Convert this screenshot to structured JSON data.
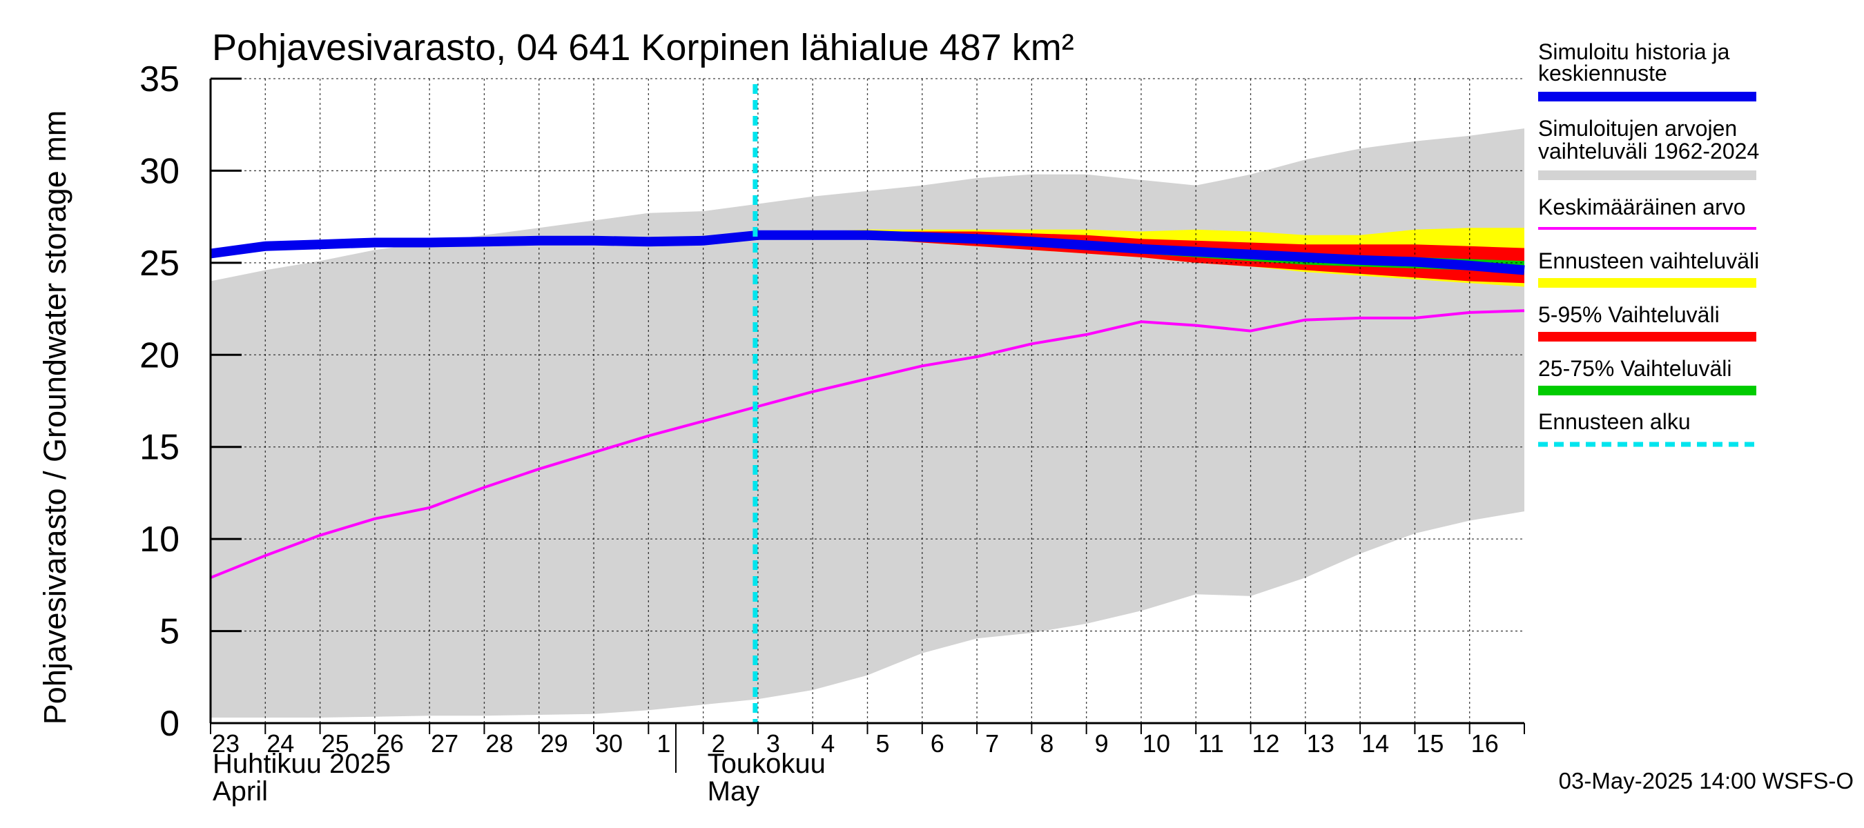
{
  "chart_data": {
    "type": "area",
    "title": "Pohjavesivarasto, 04 641 Korpinen lähialue 487 km²",
    "ylabel": "Pohjavesivarasto / Groundwater storage   mm",
    "ylim": [
      0,
      35
    ],
    "yticks": [
      "0",
      "5",
      "10",
      "15",
      "20",
      "25",
      "30",
      "35"
    ],
    "grid": true,
    "legend_position": "right",
    "x_start": "2025-04-23",
    "x_end": "2025-05-17",
    "forecast_start": "2025-05-03",
    "day_labels": [
      "23",
      "24",
      "25",
      "26",
      "27",
      "28",
      "29",
      "30",
      "1",
      "2",
      "3",
      "4",
      "5",
      "6",
      "7",
      "8",
      "9",
      "10",
      "11",
      "12",
      "13",
      "14",
      "15",
      "16"
    ],
    "months": [
      {
        "line1": "Huhtikuu  2025",
        "line2": "April",
        "start": "2025-04-23"
      },
      {
        "line1": "Toukokuu",
        "line2": "May",
        "start": "2025-05-02"
      }
    ],
    "series": [
      {
        "name": "Simuloitujen arvojen vaihteluväli 1962-2024",
        "kind": "band",
        "color": "#d3d3d3",
        "x": [
          "2025-04-23",
          "2025-04-24",
          "2025-04-25",
          "2025-04-26",
          "2025-04-27",
          "2025-04-28",
          "2025-04-29",
          "2025-04-30",
          "2025-05-01",
          "2025-05-02",
          "2025-05-03",
          "2025-05-04",
          "2025-05-05",
          "2025-05-06",
          "2025-05-07",
          "2025-05-08",
          "2025-05-09",
          "2025-05-10",
          "2025-05-11",
          "2025-05-12",
          "2025-05-13",
          "2025-05-14",
          "2025-05-15",
          "2025-05-16",
          "2025-05-17"
        ],
        "low": [
          0.3,
          0.3,
          0.3,
          0.35,
          0.4,
          0.4,
          0.45,
          0.5,
          0.7,
          1.0,
          1.3,
          1.8,
          2.6,
          3.8,
          4.6,
          4.9,
          5.4,
          6.1,
          7.0,
          6.9,
          7.9,
          9.2,
          10.3,
          11.0,
          11.5
        ],
        "high": [
          24.0,
          24.6,
          25.1,
          25.7,
          26.1,
          26.5,
          26.9,
          27.3,
          27.7,
          27.8,
          28.2,
          28.6,
          28.9,
          29.2,
          29.6,
          29.8,
          29.8,
          29.5,
          29.2,
          29.8,
          30.6,
          31.2,
          31.6,
          31.9,
          32.3
        ]
      },
      {
        "name": "Ennusteen vaihteluväli",
        "kind": "band",
        "color": "#ffff00",
        "x": [
          "2025-05-03",
          "2025-05-04",
          "2025-05-05",
          "2025-05-06",
          "2025-05-07",
          "2025-05-08",
          "2025-05-09",
          "2025-05-10",
          "2025-05-11",
          "2025-05-12",
          "2025-05-13",
          "2025-05-14",
          "2025-05-15",
          "2025-05-16",
          "2025-05-17"
        ],
        "low": [
          26.5,
          26.4,
          26.3,
          26.1,
          25.9,
          25.7,
          25.5,
          25.3,
          25.0,
          24.8,
          24.5,
          24.3,
          24.1,
          23.9,
          23.7
        ],
        "high": [
          26.5,
          26.7,
          26.8,
          26.8,
          26.8,
          26.8,
          26.8,
          26.7,
          26.8,
          26.7,
          26.5,
          26.5,
          26.8,
          26.9,
          26.9
        ]
      },
      {
        "name": "5-95% Vaihteluväli",
        "kind": "band",
        "color": "#ff0000",
        "x": [
          "2025-05-03",
          "2025-05-04",
          "2025-05-05",
          "2025-05-06",
          "2025-05-07",
          "2025-05-08",
          "2025-05-09",
          "2025-05-10",
          "2025-05-11",
          "2025-05-12",
          "2025-05-13",
          "2025-05-14",
          "2025-05-15",
          "2025-05-16",
          "2025-05-17"
        ],
        "low": [
          26.5,
          26.4,
          26.3,
          26.1,
          25.9,
          25.7,
          25.5,
          25.3,
          25.0,
          24.8,
          24.6,
          24.4,
          24.2,
          24.0,
          23.9
        ],
        "high": [
          26.5,
          26.6,
          26.7,
          26.7,
          26.7,
          26.6,
          26.5,
          26.3,
          26.2,
          26.1,
          26.0,
          26.0,
          26.0,
          25.9,
          25.8
        ]
      },
      {
        "name": "25-75% Vaihteluväli",
        "kind": "band",
        "color": "#00cc00",
        "x": [
          "2025-05-03",
          "2025-05-04",
          "2025-05-05",
          "2025-05-06",
          "2025-05-07",
          "2025-05-08",
          "2025-05-09",
          "2025-05-10",
          "2025-05-11",
          "2025-05-12",
          "2025-05-13",
          "2025-05-14",
          "2025-05-15",
          "2025-05-16",
          "2025-05-17"
        ],
        "low": [
          26.5,
          26.5,
          26.5,
          26.3,
          26.1,
          25.9,
          25.7,
          25.5,
          25.3,
          25.1,
          24.9,
          24.8,
          24.7,
          24.6,
          24.5
        ],
        "high": [
          26.5,
          26.6,
          26.6,
          26.5,
          26.4,
          26.3,
          26.1,
          25.9,
          25.7,
          25.6,
          25.5,
          25.4,
          25.3,
          25.2,
          25.1
        ]
      },
      {
        "name": "Keskimääräinen arvo",
        "kind": "line",
        "color": "#ff00ff",
        "x": [
          "2025-04-23",
          "2025-04-24",
          "2025-04-25",
          "2025-04-26",
          "2025-04-27",
          "2025-04-28",
          "2025-04-29",
          "2025-04-30",
          "2025-05-01",
          "2025-05-02",
          "2025-05-03",
          "2025-05-04",
          "2025-05-05",
          "2025-05-06",
          "2025-05-07",
          "2025-05-08",
          "2025-05-09",
          "2025-05-10",
          "2025-05-11",
          "2025-05-12",
          "2025-05-13",
          "2025-05-14",
          "2025-05-15",
          "2025-05-16",
          "2025-05-17"
        ],
        "y": [
          7.9,
          9.1,
          10.2,
          11.1,
          11.7,
          12.8,
          13.8,
          14.7,
          15.6,
          16.4,
          17.2,
          18.0,
          18.7,
          19.4,
          19.9,
          20.6,
          21.1,
          21.8,
          21.6,
          21.3,
          21.9,
          22.0,
          22.0,
          22.3,
          22.4
        ]
      },
      {
        "name": "Simuloitu historia ja keskiennuste",
        "kind": "line",
        "color": "#0000ee",
        "x": [
          "2025-04-23",
          "2025-04-24",
          "2025-04-25",
          "2025-04-26",
          "2025-04-27",
          "2025-04-28",
          "2025-04-29",
          "2025-04-30",
          "2025-05-01",
          "2025-05-02",
          "2025-05-03",
          "2025-05-04",
          "2025-05-05",
          "2025-05-06",
          "2025-05-07",
          "2025-05-08",
          "2025-05-09",
          "2025-05-10",
          "2025-05-11",
          "2025-05-12",
          "2025-05-13",
          "2025-05-14",
          "2025-05-15",
          "2025-05-16",
          "2025-05-17"
        ],
        "y": [
          25.5,
          25.9,
          26.0,
          26.1,
          26.1,
          26.15,
          26.2,
          26.2,
          26.15,
          26.2,
          26.5,
          26.5,
          26.5,
          26.4,
          26.3,
          26.15,
          25.95,
          25.75,
          25.6,
          25.45,
          25.3,
          25.15,
          25.05,
          24.85,
          24.6
        ]
      },
      {
        "name": "Ennusteen alku",
        "kind": "vline",
        "color": "#00e5ee",
        "x": [
          "2025-05-03"
        ]
      }
    ],
    "legend": [
      {
        "label": "Simuloitu historia ja keskiennuste",
        "color": "#0000ee",
        "style": "solid",
        "line1": "Simuloitu historia ja",
        "line2": "keskiennuste"
      },
      {
        "label": "Simuloitujen arvojen vaihteluväli 1962-2024",
        "color": "#d3d3d3",
        "style": "solid",
        "line1": "Simuloitujen arvojen",
        "line2": "vaihteluväli 1962-2024"
      },
      {
        "label": "Keskimääräinen arvo",
        "color": "#ff00ff",
        "style": "thin",
        "line1": "Keskimääräinen arvo",
        "line2": ""
      },
      {
        "label": "Ennusteen vaihteluväli",
        "color": "#ffff00",
        "style": "solid",
        "line1": "Ennusteen vaihteluväli",
        "line2": ""
      },
      {
        "label": "5-95% Vaihteluväli",
        "color": "#ff0000",
        "style": "solid",
        "line1": "5-95% Vaihteluväli",
        "line2": ""
      },
      {
        "label": "25-75% Vaihteluväli",
        "color": "#00cc00",
        "style": "solid",
        "line1": "25-75% Vaihteluväli",
        "line2": ""
      },
      {
        "label": "Ennusteen alku",
        "color": "#00e5ee",
        "style": "dashed",
        "line1": "Ennusteen alku",
        "line2": ""
      }
    ],
    "footer": "03-May-2025 14:00 WSFS-O"
  }
}
